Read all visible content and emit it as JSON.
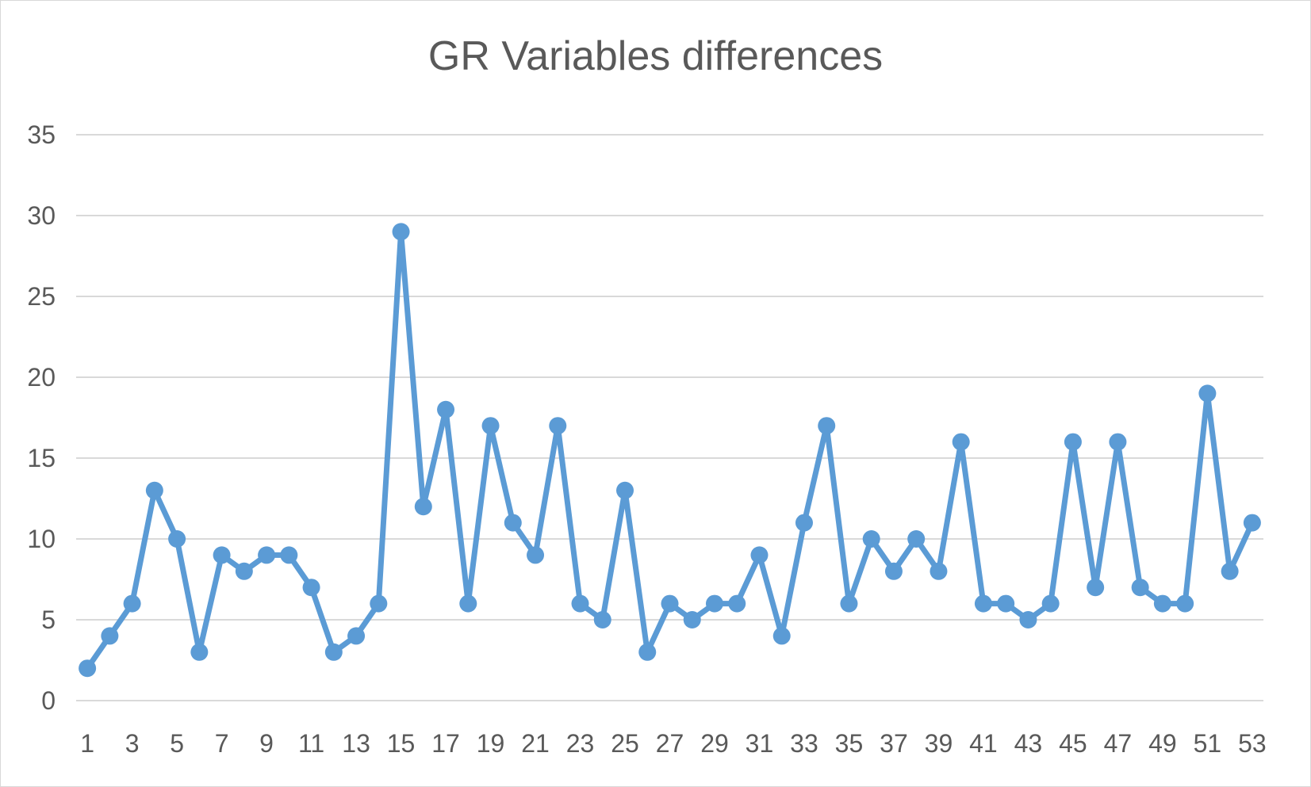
{
  "chart_data": {
    "type": "line",
    "title": "GR Variables differences",
    "xlabel": "",
    "ylabel": "",
    "ylim": [
      0,
      35
    ],
    "yticks": [
      0,
      5,
      10,
      15,
      20,
      25,
      30,
      35
    ],
    "xtick_labels": [
      "1",
      "3",
      "5",
      "7",
      "9",
      "11",
      "13",
      "15",
      "17",
      "19",
      "21",
      "23",
      "25",
      "27",
      "29",
      "31",
      "33",
      "35",
      "37",
      "39",
      "41",
      "43",
      "45",
      "47",
      "49",
      "51",
      "53"
    ],
    "grid": "horizontal",
    "legend": "none",
    "x": [
      1,
      2,
      3,
      4,
      5,
      6,
      7,
      8,
      9,
      10,
      11,
      12,
      13,
      14,
      15,
      16,
      17,
      18,
      19,
      20,
      21,
      22,
      23,
      24,
      25,
      26,
      27,
      28,
      29,
      30,
      31,
      32,
      33,
      34,
      35,
      36,
      37,
      38,
      39,
      40,
      41,
      42,
      43,
      44,
      45,
      46,
      47,
      48,
      49,
      50,
      51,
      52,
      53
    ],
    "series": [
      {
        "color": "#5b9bd5",
        "values": [
          2,
          4,
          6,
          13,
          10,
          3,
          9,
          8,
          9,
          9,
          7,
          3,
          4,
          6,
          29,
          12,
          18,
          6,
          17,
          11,
          9,
          17,
          6,
          5,
          13,
          3,
          6,
          5,
          6,
          6,
          9,
          4,
          11,
          17,
          6,
          10,
          8,
          10,
          8,
          16,
          6,
          6,
          5,
          6,
          16,
          7,
          16,
          7,
          6,
          6,
          19,
          8,
          11
        ]
      }
    ]
  },
  "colors": {
    "line": "#5b9bd5",
    "grid": "#d9d9d9",
    "text": "#595959"
  }
}
